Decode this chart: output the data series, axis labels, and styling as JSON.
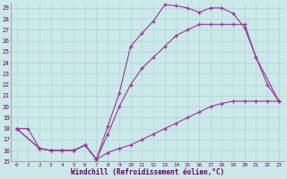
{
  "xlabel": "Windchill (Refroidissement éolien,°C)",
  "bg_color": "#cce8e8",
  "grid_color": "#b0d8d8",
  "line_color": "#993399",
  "xlim": [
    -0.5,
    23.5
  ],
  "ylim": [
    15,
    29.5
  ],
  "xticks": [
    0,
    1,
    2,
    3,
    4,
    5,
    6,
    7,
    8,
    9,
    10,
    11,
    12,
    13,
    14,
    15,
    16,
    17,
    18,
    19,
    20,
    21,
    22,
    23
  ],
  "yticks": [
    15,
    16,
    17,
    18,
    19,
    20,
    21,
    22,
    23,
    24,
    25,
    26,
    27,
    28,
    29
  ],
  "series": [
    {
      "x": [
        0,
        1,
        2,
        3,
        4,
        5,
        6,
        7,
        8,
        9,
        10,
        11,
        12,
        13,
        14,
        15,
        16,
        17,
        18,
        19,
        20,
        21,
        22,
        23
      ],
      "y": [
        18,
        18,
        16.2,
        16.0,
        16.0,
        16.0,
        16.5,
        15.2,
        18.2,
        21.2,
        25.5,
        26.7,
        27.8,
        29.3,
        29.2,
        29.0,
        28.6,
        29.0,
        29.0,
        28.5,
        27.2,
        24.5,
        22.0,
        20.5
      ]
    },
    {
      "x": [
        0,
        2,
        3,
        4,
        5,
        6,
        7,
        8,
        9,
        10,
        11,
        12,
        13,
        14,
        15,
        16,
        17,
        18,
        19,
        20,
        21,
        23
      ],
      "y": [
        18,
        16.2,
        16.0,
        16.0,
        16.0,
        16.5,
        15.2,
        17.5,
        20.0,
        22.0,
        23.5,
        24.5,
        25.5,
        26.5,
        27.0,
        27.5,
        27.5,
        27.5,
        27.5,
        27.5,
        24.5,
        20.5
      ]
    },
    {
      "x": [
        0,
        2,
        3,
        4,
        5,
        6,
        7,
        8,
        9,
        10,
        11,
        12,
        13,
        14,
        15,
        16,
        17,
        18,
        19,
        20,
        21,
        22,
        23
      ],
      "y": [
        18,
        16.2,
        16.0,
        16.0,
        16.0,
        16.5,
        15.2,
        15.8,
        16.2,
        16.5,
        17.0,
        17.5,
        18.0,
        18.5,
        19.0,
        19.5,
        20.0,
        20.3,
        20.5,
        20.5,
        20.5,
        20.5,
        20.5
      ]
    }
  ]
}
